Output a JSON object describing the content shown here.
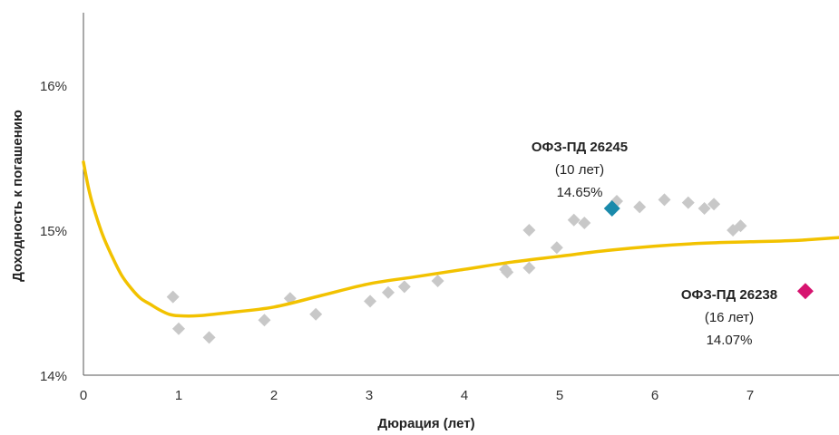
{
  "chart_data": {
    "type": "scatter",
    "title": "",
    "xlabel": "Дюрация (лет)",
    "ylabel": "Доходность к погашению",
    "xlim": [
      0,
      7.95
    ],
    "ylim": [
      14,
      16.6
    ],
    "x_ticks": [
      0,
      1,
      2,
      3,
      4,
      5,
      6,
      7
    ],
    "x_tick_labels": [
      "0",
      "1",
      "2",
      "3",
      "4",
      "5",
      "6",
      "7"
    ],
    "y_ticks": [
      14,
      15,
      16
    ],
    "y_tick_labels": [
      "14%",
      "15%",
      "16%"
    ],
    "grid": false,
    "legend": "none",
    "colors": {
      "bonds": "#c8c8c8",
      "curve": "#f2c200",
      "highlight_1": "#1a8aab",
      "highlight_2": "#d6136f"
    },
    "series": [
      {
        "type": "scatter",
        "points": [
          {
            "x": 0.94,
            "y": 14.54
          },
          {
            "x": 1.0,
            "y": 14.32
          },
          {
            "x": 1.32,
            "y": 14.26
          },
          {
            "x": 1.9,
            "y": 14.38
          },
          {
            "x": 2.17,
            "y": 14.53
          },
          {
            "x": 2.44,
            "y": 14.42
          },
          {
            "x": 3.01,
            "y": 14.51
          },
          {
            "x": 3.2,
            "y": 14.57
          },
          {
            "x": 3.37,
            "y": 14.61
          },
          {
            "x": 3.72,
            "y": 14.65
          },
          {
            "x": 4.43,
            "y": 14.73
          },
          {
            "x": 4.45,
            "y": 14.71
          },
          {
            "x": 4.68,
            "y": 14.74
          },
          {
            "x": 4.68,
            "y": 15.0
          },
          {
            "x": 4.97,
            "y": 14.88
          },
          {
            "x": 5.15,
            "y": 15.07
          },
          {
            "x": 5.26,
            "y": 15.05
          },
          {
            "x": 5.6,
            "y": 15.2
          },
          {
            "x": 5.84,
            "y": 15.16
          },
          {
            "x": 6.1,
            "y": 15.21
          },
          {
            "x": 6.35,
            "y": 15.19
          },
          {
            "x": 6.52,
            "y": 15.15
          },
          {
            "x": 6.62,
            "y": 15.18
          },
          {
            "x": 6.82,
            "y": 15.0
          },
          {
            "x": 6.9,
            "y": 15.03
          }
        ]
      },
      {
        "type": "line",
        "points": [
          {
            "x": 0.0,
            "y": 15.47
          },
          {
            "x": 0.05,
            "y": 15.3
          },
          {
            "x": 0.1,
            "y": 15.17
          },
          {
            "x": 0.2,
            "y": 14.97
          },
          {
            "x": 0.3,
            "y": 14.82
          },
          {
            "x": 0.4,
            "y": 14.69
          },
          {
            "x": 0.5,
            "y": 14.6
          },
          {
            "x": 0.6,
            "y": 14.53
          },
          {
            "x": 0.7,
            "y": 14.49
          },
          {
            "x": 0.8,
            "y": 14.45
          },
          {
            "x": 0.9,
            "y": 14.42
          },
          {
            "x": 1.0,
            "y": 14.41
          },
          {
            "x": 1.2,
            "y": 14.41
          },
          {
            "x": 1.5,
            "y": 14.43
          },
          {
            "x": 2.0,
            "y": 14.47
          },
          {
            "x": 2.5,
            "y": 14.55
          },
          {
            "x": 3.0,
            "y": 14.63
          },
          {
            "x": 3.5,
            "y": 14.68
          },
          {
            "x": 4.0,
            "y": 14.73
          },
          {
            "x": 4.5,
            "y": 14.78
          },
          {
            "x": 5.0,
            "y": 14.82
          },
          {
            "x": 5.5,
            "y": 14.86
          },
          {
            "x": 6.0,
            "y": 14.89
          },
          {
            "x": 6.5,
            "y": 14.91
          },
          {
            "x": 7.0,
            "y": 14.92
          },
          {
            "x": 7.5,
            "y": 14.93
          },
          {
            "x": 7.95,
            "y": 14.95
          }
        ]
      },
      {
        "name": "ОФЗ-ПД 26245",
        "type": "highlight",
        "points": [
          {
            "x": 5.55,
            "y": 15.15
          }
        ],
        "annotation": [
          "ОФЗ-ПД 26245",
          "(10 лет)",
          "14.65%"
        ]
      },
      {
        "name": "ОФЗ-ПД 26238",
        "type": "highlight",
        "points": [
          {
            "x": 7.58,
            "y": 14.58
          }
        ],
        "annotation": [
          "ОФЗ-ПД 26238",
          "(16 лет)",
          "14.07%"
        ]
      }
    ]
  }
}
